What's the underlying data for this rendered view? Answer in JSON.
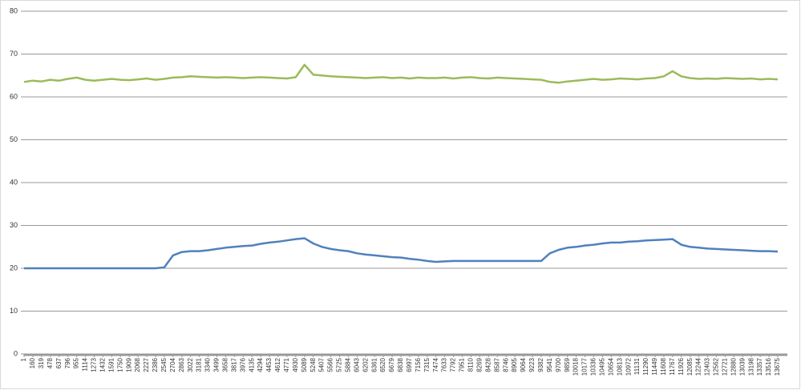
{
  "chart_data": {
    "type": "line",
    "x": [
      1,
      160,
      319,
      478,
      637,
      796,
      955,
      1114,
      1273,
      1432,
      1591,
      1750,
      1909,
      2068,
      2227,
      2386,
      2545,
      2704,
      2863,
      3022,
      3181,
      3340,
      3499,
      3658,
      3817,
      3976,
      4135,
      4294,
      4453,
      4612,
      4771,
      4930,
      5089,
      5248,
      5407,
      5566,
      5725,
      5884,
      6043,
      6202,
      6361,
      6520,
      6679,
      6838,
      6997,
      7156,
      7315,
      7474,
      7633,
      7792,
      7951,
      8110,
      8269,
      8428,
      8587,
      8746,
      8905,
      9064,
      9223,
      9382,
      9541,
      9700,
      9859,
      10018,
      10177,
      10336,
      10495,
      10654,
      10813,
      10972,
      11131,
      11290,
      11449,
      11608,
      11767,
      11926,
      12085,
      12244,
      12403,
      12562,
      12721,
      12880,
      13039,
      13198,
      13357,
      13516,
      13675
    ],
    "series": [
      {
        "color": "#9bbb59",
        "values": [
          63.5,
          63.8,
          63.6,
          64,
          63.8,
          64.2,
          64.5,
          64,
          63.8,
          64,
          64.2,
          64,
          63.9,
          64.1,
          64.3,
          64,
          64.2,
          64.5,
          64.6,
          64.8,
          64.7,
          64.6,
          64.5,
          64.6,
          64.5,
          64.4,
          64.5,
          64.6,
          64.5,
          64.4,
          64.3,
          64.6,
          67.5,
          65.2,
          65,
          64.8,
          64.7,
          64.6,
          64.5,
          64.4,
          64.5,
          64.6,
          64.4,
          64.5,
          64.3,
          64.5,
          64.4,
          64.4,
          64.5,
          64.3,
          64.5,
          64.6,
          64.4,
          64.3,
          64.5,
          64.4,
          64.3,
          64.2,
          64.1,
          64,
          63.5,
          63.3,
          63.6,
          63.8,
          64,
          64.2,
          64,
          64.1,
          64.3,
          64.2,
          64.1,
          64.3,
          64.4,
          64.8,
          66,
          64.8,
          64.4,
          64.2,
          64.3,
          64.2,
          64.4,
          64.3,
          64.2,
          64.3,
          64.1,
          64.2,
          64.1
        ]
      },
      {
        "color": "#4f81bd",
        "values": [
          20,
          20,
          20,
          20,
          20,
          20,
          20,
          20,
          20,
          20,
          20,
          20,
          20,
          20,
          20,
          20,
          20.2,
          23,
          23.8,
          24,
          24,
          24.2,
          24.5,
          24.8,
          25,
          25.2,
          25.3,
          25.7,
          26,
          26.2,
          26.5,
          26.8,
          27,
          25.8,
          25,
          24.5,
          24.2,
          24,
          23.5,
          23.2,
          23,
          22.8,
          22.6,
          22.5,
          22.2,
          22,
          21.7,
          21.5,
          21.6,
          21.7,
          21.7,
          21.7,
          21.7,
          21.7,
          21.7,
          21.7,
          21.7,
          21.7,
          21.7,
          21.7,
          23.5,
          24.3,
          24.8,
          25,
          25.3,
          25.5,
          25.8,
          26,
          26,
          26.2,
          26.3,
          26.5,
          26.6,
          26.7,
          26.8,
          25.5,
          25,
          24.8,
          24.6,
          24.5,
          24.4,
          24.3,
          24.2,
          24.1,
          24,
          24,
          23.9
        ]
      }
    ],
    "xlim": [
      1,
      13850
    ],
    "xticks": [
      1,
      160,
      319,
      478,
      637,
      796,
      955,
      1114,
      1273,
      1432,
      1591,
      1750,
      1909,
      2068,
      2227,
      2386,
      2545,
      2704,
      2863,
      3022,
      3181,
      3340,
      3499,
      3658,
      3817,
      3976,
      4135,
      4294,
      4453,
      4612,
      4771,
      4930,
      5089,
      5248,
      5407,
      5566,
      5725,
      5884,
      6043,
      6202,
      6361,
      6520,
      6679,
      6838,
      6997,
      7156,
      7315,
      7474,
      7633,
      7792,
      7951,
      8110,
      8269,
      8428,
      8587,
      8746,
      8905,
      9064,
      9223,
      9382,
      9541,
      9700,
      9859,
      10018,
      10177,
      10336,
      10495,
      10654,
      10813,
      10972,
      11131,
      11290,
      11449,
      11608,
      11767,
      11926,
      12085,
      12244,
      12403,
      12562,
      12721,
      12880,
      13039,
      13198,
      13357,
      13516,
      13675
    ],
    "ylim": [
      0,
      80
    ],
    "yticks": [
      0,
      10,
      20,
      30,
      40,
      50,
      60,
      70,
      80
    ],
    "grid": true
  }
}
